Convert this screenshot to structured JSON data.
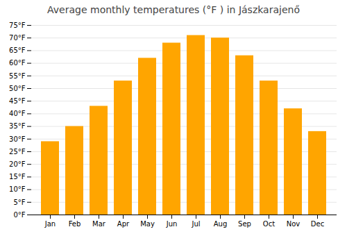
{
  "chart_data": {
    "type": "bar",
    "title": "Average monthly temperatures (°F ) in Jászkarajenő",
    "categories": [
      "Jan",
      "Feb",
      "Mar",
      "Apr",
      "May",
      "Jun",
      "Jul",
      "Aug",
      "Sep",
      "Oct",
      "Nov",
      "Dec"
    ],
    "values": [
      29,
      35,
      43,
      53,
      62,
      68,
      71,
      70,
      63,
      53,
      42,
      33
    ],
    "color": "#FFA500",
    "ylim": [
      0,
      75
    ],
    "yticks": [
      {
        "value": 0,
        "label": "0°F"
      },
      {
        "value": 5,
        "label": "5°F"
      },
      {
        "value": 10,
        "label": "10°F"
      },
      {
        "value": 15,
        "label": "15°F"
      },
      {
        "value": 20,
        "label": "20°F"
      },
      {
        "value": 25,
        "label": "25°F"
      },
      {
        "value": 30,
        "label": "30°F"
      },
      {
        "value": 35,
        "label": "35°F"
      },
      {
        "value": 40,
        "label": "40°F"
      },
      {
        "value": 45,
        "label": "45°F"
      },
      {
        "value": 50,
        "label": "50°F"
      },
      {
        "value": 55,
        "label": "55°F"
      },
      {
        "value": 60,
        "label": "60°F"
      },
      {
        "value": 65,
        "label": "65°F"
      },
      {
        "value": 70,
        "label": "70°F"
      },
      {
        "value": 75,
        "label": "75°F"
      }
    ],
    "grid": true
  }
}
